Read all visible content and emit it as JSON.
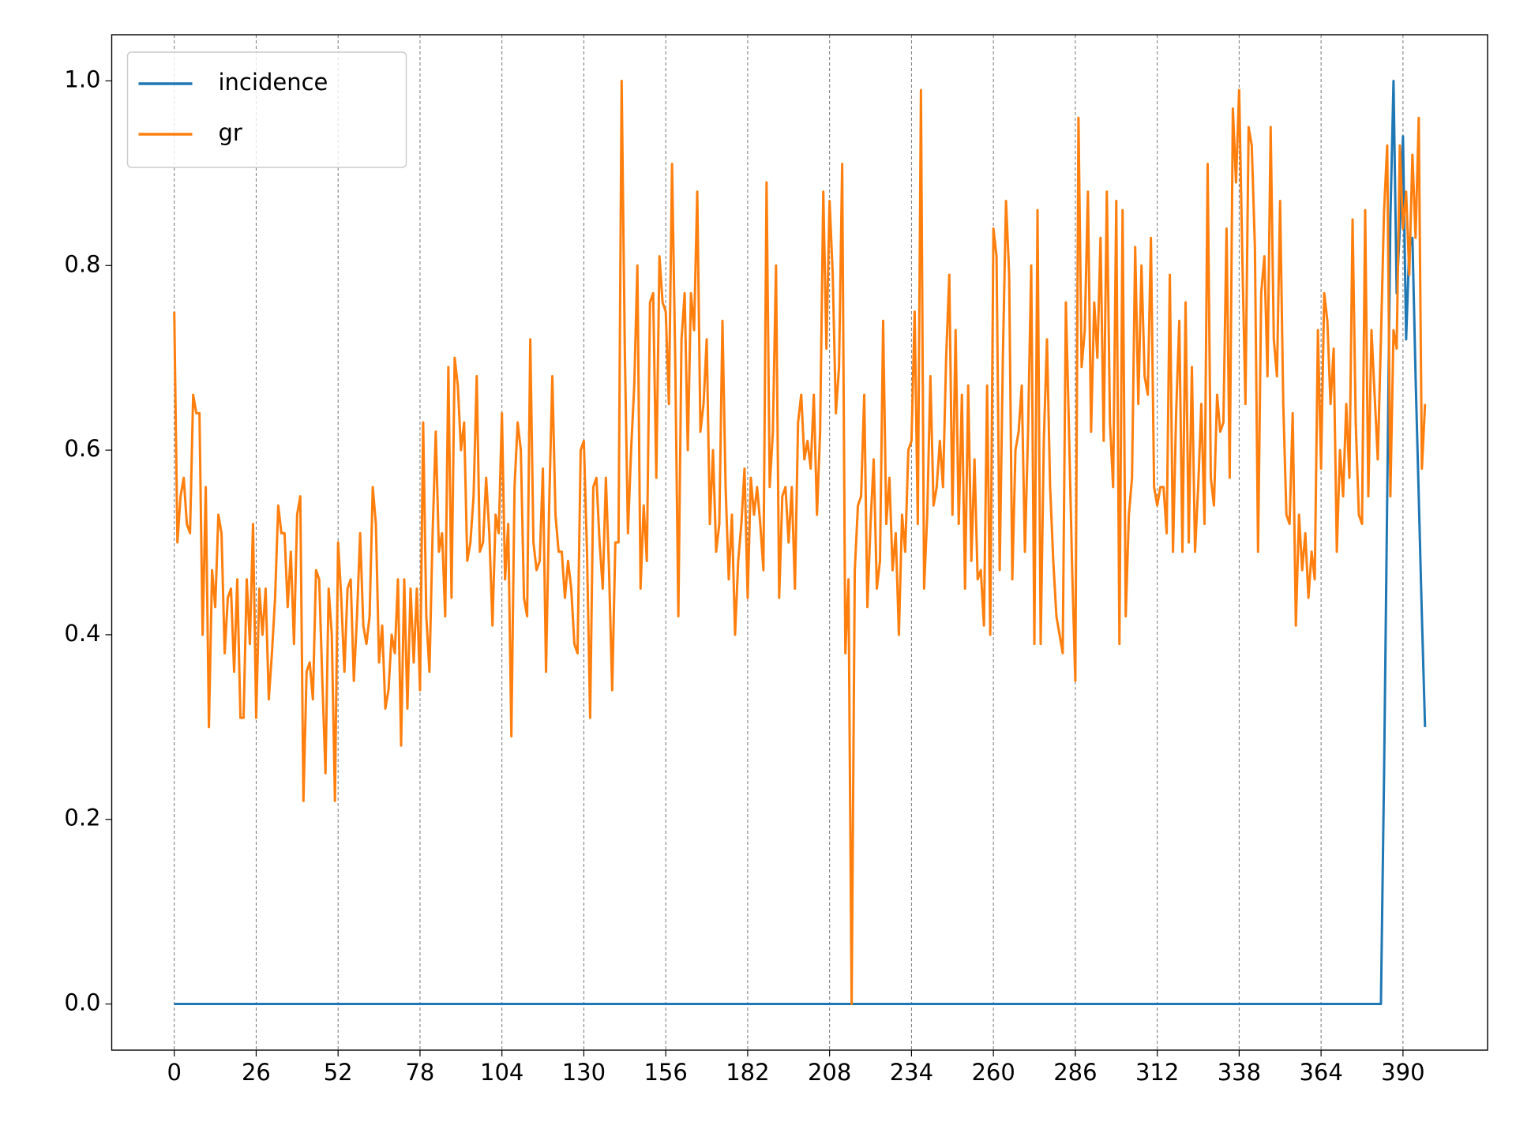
{
  "chart_data": {
    "type": "line",
    "xlim": [
      -19.85,
      416.85
    ],
    "xticks": [
      0,
      26,
      52,
      78,
      104,
      130,
      156,
      182,
      208,
      234,
      260,
      286,
      312,
      338,
      364,
      390
    ],
    "ylim": [
      -0.05,
      1.05
    ],
    "yticks": [
      {
        "value": 0,
        "label": "0.0"
      },
      0.2,
      0.4,
      0.6,
      0.8,
      {
        "value": 1,
        "label": "1.0"
      }
    ],
    "grid": "x",
    "legend": "upper left",
    "series": [
      {
        "name": "incidence",
        "color": "#1f77b4",
        "values": [
          0,
          0,
          0,
          0,
          0,
          0,
          0,
          0,
          0,
          0,
          0,
          0,
          0,
          0,
          0,
          0,
          0,
          0,
          0,
          0,
          0,
          0,
          0,
          0,
          0,
          0,
          0,
          0,
          0,
          0,
          0,
          0,
          0,
          0,
          0,
          0,
          0,
          0,
          0,
          0,
          0,
          0,
          0,
          0,
          0,
          0,
          0,
          0,
          0,
          0,
          0,
          0,
          0,
          0,
          0,
          0,
          0,
          0,
          0,
          0,
          0,
          0,
          0,
          0,
          0,
          0,
          0,
          0,
          0,
          0,
          0,
          0,
          0,
          0,
          0,
          0,
          0,
          0,
          0,
          0,
          0,
          0,
          0,
          0,
          0,
          0,
          0,
          0,
          0,
          0,
          0,
          0,
          0,
          0,
          0,
          0,
          0,
          0,
          0,
          0,
          0,
          0,
          0,
          0,
          0,
          0,
          0,
          0,
          0,
          0,
          0,
          0,
          0,
          0,
          0,
          0,
          0,
          0,
          0,
          0,
          0,
          0,
          0,
          0,
          0,
          0,
          0,
          0,
          0,
          0,
          0,
          0,
          0,
          0,
          0,
          0,
          0,
          0,
          0,
          0,
          0,
          0,
          0,
          0,
          0,
          0,
          0,
          0,
          0,
          0,
          0,
          0,
          0,
          0,
          0,
          0,
          0,
          0,
          0,
          0,
          0,
          0,
          0,
          0,
          0,
          0,
          0,
          0,
          0,
          0,
          0,
          0,
          0,
          0,
          0,
          0,
          0,
          0,
          0,
          0,
          0,
          0,
          0,
          0,
          0,
          0,
          0,
          0,
          0,
          0,
          0,
          0,
          0,
          0,
          0,
          0,
          0,
          0,
          0,
          0,
          0,
          0,
          0,
          0,
          0,
          0,
          0,
          0,
          0,
          0,
          0,
          0,
          0,
          0,
          0,
          0,
          0,
          0,
          0,
          0,
          0,
          0,
          0,
          0,
          0,
          0,
          0,
          0,
          0,
          0,
          0,
          0,
          0,
          0,
          0,
          0,
          0,
          0,
          0,
          0,
          0,
          0,
          0,
          0,
          0,
          0,
          0,
          0,
          0,
          0,
          0,
          0,
          0,
          0,
          0,
          0,
          0,
          0,
          0,
          0,
          0,
          0,
          0,
          0,
          0,
          0,
          0,
          0,
          0,
          0,
          0,
          0,
          0,
          0,
          0,
          0,
          0,
          0,
          0,
          0,
          0,
          0,
          0,
          0,
          0,
          0,
          0,
          0,
          0,
          0,
          0,
          0,
          0,
          0,
          0,
          0,
          0,
          0,
          0,
          0,
          0,
          0,
          0,
          0,
          0,
          0,
          0,
          0,
          0,
          0,
          0,
          0,
          0,
          0,
          0,
          0,
          0,
          0,
          0,
          0,
          0,
          0,
          0,
          0,
          0,
          0,
          0,
          0,
          0,
          0,
          0,
          0,
          0,
          0,
          0,
          0,
          0,
          0,
          0,
          0,
          0,
          0,
          0,
          0,
          0,
          0,
          0,
          0,
          0,
          0,
          0,
          0,
          0,
          0,
          0,
          0,
          0,
          0,
          0,
          0,
          0,
          0,
          0,
          0,
          0,
          0,
          0,
          0,
          0,
          0,
          0,
          0,
          0,
          0,
          0,
          0,
          0,
          0,
          0,
          0,
          0,
          0,
          0,
          0,
          0.25,
          0.55,
          0.85,
          1.0,
          0.77,
          0.84,
          0.94,
          0.72,
          0.82,
          0.83,
          0.68,
          0.55,
          0.42,
          0.3
        ]
      },
      {
        "name": "gr",
        "color": "#ff7f0e",
        "values": [
          0.75,
          0.5,
          0.55,
          0.57,
          0.52,
          0.51,
          0.66,
          0.64,
          0.64,
          0.4,
          0.56,
          0.3,
          0.47,
          0.43,
          0.53,
          0.51,
          0.38,
          0.44,
          0.45,
          0.36,
          0.46,
          0.31,
          0.31,
          0.46,
          0.39,
          0.52,
          0.31,
          0.45,
          0.4,
          0.45,
          0.33,
          0.38,
          0.44,
          0.54,
          0.51,
          0.51,
          0.43,
          0.49,
          0.39,
          0.53,
          0.55,
          0.22,
          0.36,
          0.37,
          0.33,
          0.47,
          0.46,
          0.35,
          0.25,
          0.45,
          0.4,
          0.22,
          0.5,
          0.44,
          0.36,
          0.45,
          0.46,
          0.35,
          0.42,
          0.51,
          0.41,
          0.39,
          0.42,
          0.56,
          0.52,
          0.37,
          0.41,
          0.32,
          0.34,
          0.4,
          0.38,
          0.46,
          0.28,
          0.46,
          0.32,
          0.45,
          0.37,
          0.45,
          0.34,
          0.63,
          0.42,
          0.36,
          0.51,
          0.62,
          0.49,
          0.51,
          0.42,
          0.69,
          0.44,
          0.7,
          0.67,
          0.6,
          0.63,
          0.48,
          0.5,
          0.55,
          0.68,
          0.49,
          0.5,
          0.57,
          0.51,
          0.41,
          0.53,
          0.51,
          0.64,
          0.46,
          0.52,
          0.29,
          0.56,
          0.63,
          0.6,
          0.44,
          0.42,
          0.72,
          0.5,
          0.47,
          0.48,
          0.58,
          0.36,
          0.54,
          0.68,
          0.53,
          0.49,
          0.49,
          0.44,
          0.48,
          0.45,
          0.39,
          0.38,
          0.6,
          0.61,
          0.49,
          0.31,
          0.56,
          0.57,
          0.5,
          0.45,
          0.57,
          0.47,
          0.34,
          0.5,
          0.5,
          1.0,
          0.71,
          0.51,
          0.6,
          0.67,
          0.8,
          0.45,
          0.54,
          0.48,
          0.76,
          0.77,
          0.57,
          0.81,
          0.76,
          0.75,
          0.65,
          0.91,
          0.7,
          0.42,
          0.72,
          0.77,
          0.6,
          0.77,
          0.73,
          0.88,
          0.62,
          0.65,
          0.72,
          0.52,
          0.6,
          0.49,
          0.52,
          0.74,
          0.56,
          0.46,
          0.53,
          0.4,
          0.48,
          0.52,
          0.58,
          0.44,
          0.57,
          0.53,
          0.56,
          0.52,
          0.47,
          0.89,
          0.56,
          0.62,
          0.8,
          0.44,
          0.55,
          0.56,
          0.5,
          0.56,
          0.45,
          0.63,
          0.66,
          0.59,
          0.61,
          0.58,
          0.66,
          0.53,
          0.62,
          0.88,
          0.71,
          0.87,
          0.79,
          0.64,
          0.69,
          0.91,
          0.38,
          0.46,
          0.0,
          0.47,
          0.54,
          0.55,
          0.66,
          0.43,
          0.52,
          0.59,
          0.45,
          0.48,
          0.74,
          0.52,
          0.57,
          0.47,
          0.51,
          0.4,
          0.53,
          0.49,
          0.6,
          0.61,
          0.75,
          0.52,
          0.99,
          0.45,
          0.53,
          0.68,
          0.54,
          0.56,
          0.61,
          0.56,
          0.7,
          0.79,
          0.53,
          0.73,
          0.52,
          0.66,
          0.45,
          0.67,
          0.48,
          0.59,
          0.46,
          0.47,
          0.41,
          0.67,
          0.4,
          0.84,
          0.81,
          0.47,
          0.7,
          0.87,
          0.79,
          0.46,
          0.6,
          0.62,
          0.67,
          0.49,
          0.62,
          0.8,
          0.39,
          0.86,
          0.39,
          0.61,
          0.72,
          0.56,
          0.48,
          0.42,
          0.4,
          0.38,
          0.76,
          0.62,
          0.47,
          0.35,
          0.96,
          0.69,
          0.73,
          0.88,
          0.62,
          0.76,
          0.7,
          0.83,
          0.61,
          0.88,
          0.63,
          0.56,
          0.87,
          0.39,
          0.86,
          0.42,
          0.53,
          0.57,
          0.82,
          0.65,
          0.8,
          0.68,
          0.66,
          0.83,
          0.56,
          0.54,
          0.56,
          0.56,
          0.51,
          0.79,
          0.49,
          0.64,
          0.74,
          0.49,
          0.76,
          0.5,
          0.69,
          0.49,
          0.56,
          0.65,
          0.52,
          0.91,
          0.57,
          0.54,
          0.66,
          0.62,
          0.63,
          0.84,
          0.57,
          0.97,
          0.89,
          0.99,
          0.81,
          0.65,
          0.95,
          0.93,
          0.82,
          0.49,
          0.77,
          0.81,
          0.68,
          0.95,
          0.72,
          0.68,
          0.87,
          0.65,
          0.53,
          0.52,
          0.64,
          0.41,
          0.53,
          0.47,
          0.51,
          0.44,
          0.49,
          0.46,
          0.73,
          0.58,
          0.77,
          0.74,
          0.65,
          0.71,
          0.49,
          0.6,
          0.55,
          0.65,
          0.57,
          0.85,
          0.63,
          0.53,
          0.52,
          0.86,
          0.55,
          0.73,
          0.66,
          0.59,
          0.72,
          0.86,
          0.93,
          0.55,
          0.73,
          0.71,
          0.93,
          0.84,
          0.88,
          0.79,
          0.92,
          0.83,
          0.96,
          0.58,
          0.65
        ]
      }
    ]
  }
}
